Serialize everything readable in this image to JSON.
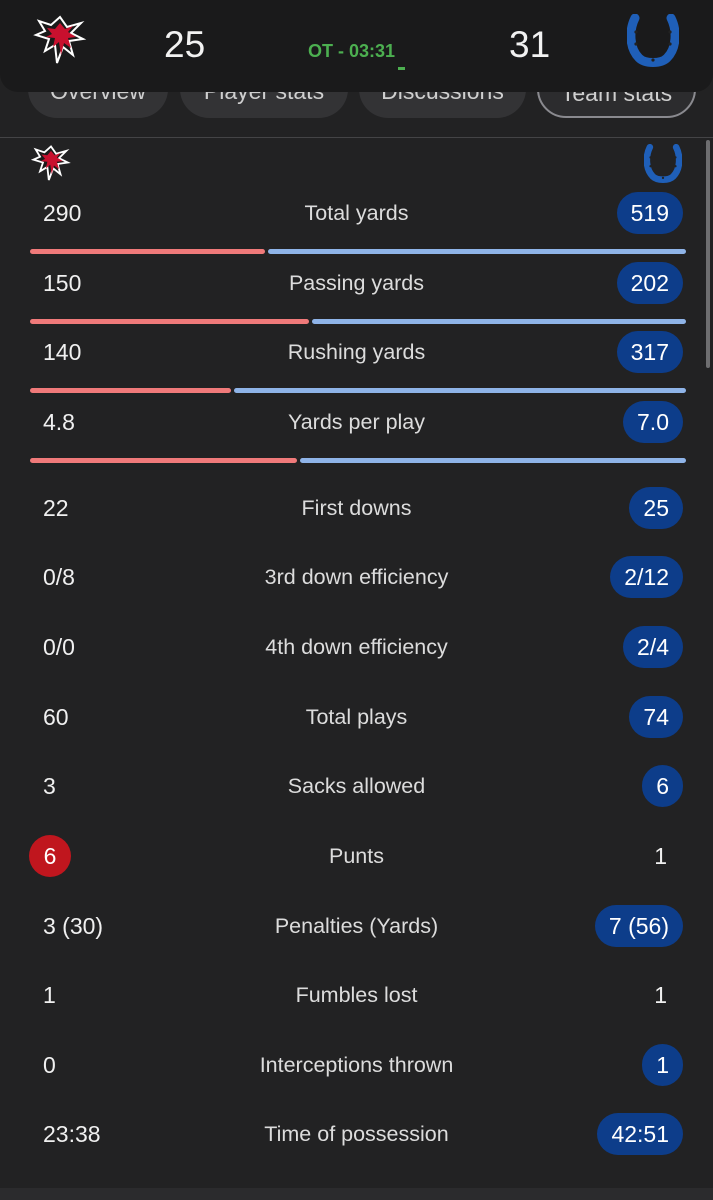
{
  "game": {
    "home_score": "25",
    "away_score": "31",
    "status": "OT - 03:31",
    "home_team_logo": "falcons-logo",
    "away_team_logo": "colts-horseshoe-logo"
  },
  "tabs": [
    "Overview",
    "Player stats",
    "Discussions",
    "Team stats"
  ],
  "active_tab": "Team stats",
  "colors": {
    "home_bar": "#f07a7a",
    "away_bar": "#8fb4e8",
    "away_pill": "#0d3d8a",
    "home_pill": "#c0161e",
    "live_status": "#4caf50"
  },
  "stats": [
    {
      "label": "Total yards",
      "home": "290",
      "away": "519",
      "highlight": "away",
      "home_share": 0.358
    },
    {
      "label": "Passing yards",
      "home": "150",
      "away": "202",
      "highlight": "away",
      "home_share": 0.426
    },
    {
      "label": "Rushing yards",
      "home": "140",
      "away": "317",
      "highlight": "away",
      "home_share": 0.306
    },
    {
      "label": "Yards per play",
      "home": "4.8",
      "away": "7.0",
      "highlight": "away",
      "home_share": 0.407
    },
    {
      "label": "First downs",
      "home": "22",
      "away": "25",
      "highlight": "away"
    },
    {
      "label": "3rd down efficiency",
      "home": "0/8",
      "away": "2/12",
      "highlight": "away"
    },
    {
      "label": "4th down efficiency",
      "home": "0/0",
      "away": "2/4",
      "highlight": "away"
    },
    {
      "label": "Total plays",
      "home": "60",
      "away": "74",
      "highlight": "away"
    },
    {
      "label": "Sacks allowed",
      "home": "3",
      "away": "6",
      "highlight": "away"
    },
    {
      "label": "Punts",
      "home": "6",
      "away": "1",
      "highlight": "home"
    },
    {
      "label": "Penalties (Yards)",
      "home": "3 (30)",
      "away": "7 (56)",
      "highlight": "away"
    },
    {
      "label": "Fumbles lost",
      "home": "1",
      "away": "1",
      "highlight": "none"
    },
    {
      "label": "Interceptions thrown",
      "home": "0",
      "away": "1",
      "highlight": "away"
    },
    {
      "label": "Time of possession",
      "home": "23:38",
      "away": "42:51",
      "highlight": "away"
    }
  ]
}
